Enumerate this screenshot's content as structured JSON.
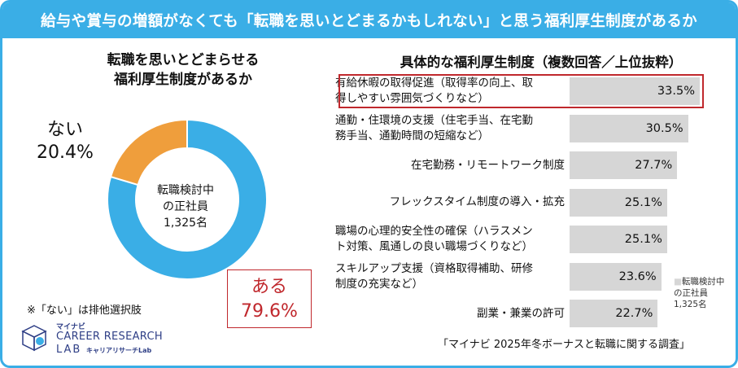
{
  "header": {
    "title": "給与や賞与の増額がなくても「転職を思いとどまるかもしれない」と思う福利厚生制度があるか"
  },
  "left_chart": {
    "heading_line1": "転職を思いとどまらせる",
    "heading_line2": "福利厚生制度があるか",
    "center_line1": "転職検討中",
    "center_line2": "の正社員",
    "center_line3": "1,325名",
    "no_label": "ない",
    "no_value": "20.4%",
    "yes_label": "ある",
    "yes_value": "79.6%",
    "note": "※「ない」は排他選択肢",
    "colors": {
      "yes": "#3aaee6",
      "no": "#ef9e3c"
    }
  },
  "right_chart": {
    "heading": "具体的な福利厚生制度（複数回答／上位抜粋）",
    "legend_marker": "■",
    "legend_line1": "転職検討中",
    "legend_line2": "の正社員",
    "legend_line3": "1,325名",
    "source": "「マイナビ 2025年冬ボーナスと転職に関する調査」",
    "bar_color": "#d6d6d6",
    "highlight_color": "#c0282d"
  },
  "logo": {
    "mynavi": "マイナビ",
    "career": "CAREER RESEARCH",
    "lab": "LAB",
    "sub": "キャリアリサーチLab"
  },
  "chart_data": [
    {
      "type": "pie",
      "labels": [
        "ある",
        "ない"
      ],
      "values": [
        79.6,
        20.4
      ],
      "title": "転職を思いとどまらせる福利厚生制度があるか"
    },
    {
      "type": "bar",
      "orientation": "horizontal",
      "title": "具体的な福利厚生制度（複数回答／上位抜粋）",
      "categories": [
        {
          "line1": "有給休暇の取得促進（取得率の向上、取",
          "line2": "得しやすい雰囲気づくりなど）"
        },
        {
          "line1": "通勤・住環境の支援（住宅手当、在宅勤",
          "line2": "務手当、通勤時間の短縮など）"
        },
        {
          "line1": "在宅勤務・リモートワーク制度",
          "line2": ""
        },
        {
          "line1": "フレックスタイム制度の導入・拡充",
          "line2": ""
        },
        {
          "line1": "職場の心理的安全性の確保（ハラスメン",
          "line2": "ト対策、風通しの良い職場づくりなど）"
        },
        {
          "line1": "スキルアップ支援（資格取得補助、研修",
          "line2": "制度の充実など）"
        },
        {
          "line1": "副業・兼業の許可",
          "line2": ""
        }
      ],
      "values": [
        33.5,
        30.5,
        27.7,
        25.1,
        25.1,
        23.6,
        22.7
      ],
      "value_labels": [
        "33.5%",
        "30.5%",
        "27.7%",
        "25.1%",
        "25.1%",
        "23.6%",
        "22.7%"
      ],
      "legend": "top-right",
      "xlim": [
        0,
        35
      ]
    }
  ]
}
